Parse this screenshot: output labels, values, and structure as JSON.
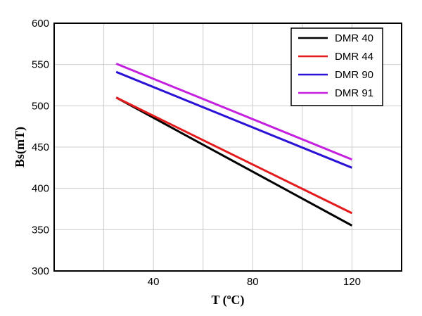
{
  "chart_data": {
    "type": "line",
    "title": "",
    "xlabel": "T (ºC)",
    "ylabel": "Bs(mT)",
    "xlim": [
      0,
      140
    ],
    "ylim": [
      300,
      600
    ],
    "xticks": [
      40,
      80,
      120
    ],
    "yticks": [
      300,
      350,
      400,
      450,
      500,
      550,
      600
    ],
    "x_minor_grid": [
      20,
      60,
      100
    ],
    "grid": true,
    "legend_position": "top-right",
    "series": [
      {
        "name": "DMR 40",
        "color": "#000000",
        "x": [
          25,
          120
        ],
        "y": [
          510,
          355
        ]
      },
      {
        "name": "DMR 44",
        "color": "#e41a1c",
        "x": [
          25,
          120
        ],
        "y": [
          510,
          370
        ]
      },
      {
        "name": "DMR 90",
        "color": "#2b13d6",
        "x": [
          25,
          120
        ],
        "y": [
          541,
          425
        ]
      },
      {
        "name": "DMR 91",
        "color": "#c520e0",
        "x": [
          25,
          120
        ],
        "y": [
          551,
          435
        ]
      }
    ]
  }
}
